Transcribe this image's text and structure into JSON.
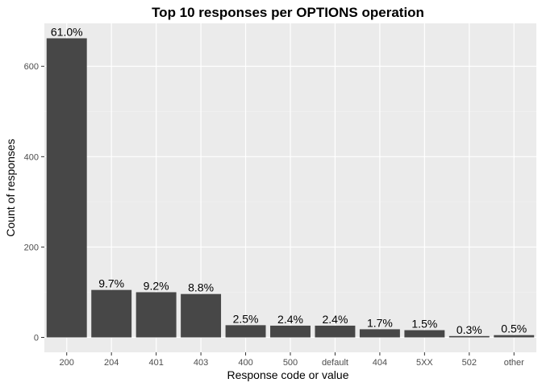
{
  "chart_data": {
    "type": "bar",
    "title": "Top 10 responses per OPTIONS operation",
    "xlabel": "Response code or value",
    "ylabel": "Count of responses",
    "categories": [
      "200",
      "204",
      "401",
      "403",
      "400",
      "500",
      "default",
      "404",
      "5XX",
      "502",
      "other"
    ],
    "values": [
      662,
      105,
      100,
      96,
      27,
      26,
      26,
      18,
      16,
      3,
      5
    ],
    "labels": [
      "61.0%",
      "9.7%",
      "9.2%",
      "8.8%",
      "2.5%",
      "2.4%",
      "2.4%",
      "1.7%",
      "1.5%",
      "0.3%",
      "0.5%"
    ],
    "yticks": [
      0,
      200,
      400,
      600
    ],
    "ylim": [
      -33,
      695
    ],
    "grid": true,
    "legend": "none",
    "colors": {
      "bar": "#474747",
      "panel": "#ebebeb",
      "grid_major": "#ffffff",
      "grid_minor": "#f2f2f2"
    }
  }
}
